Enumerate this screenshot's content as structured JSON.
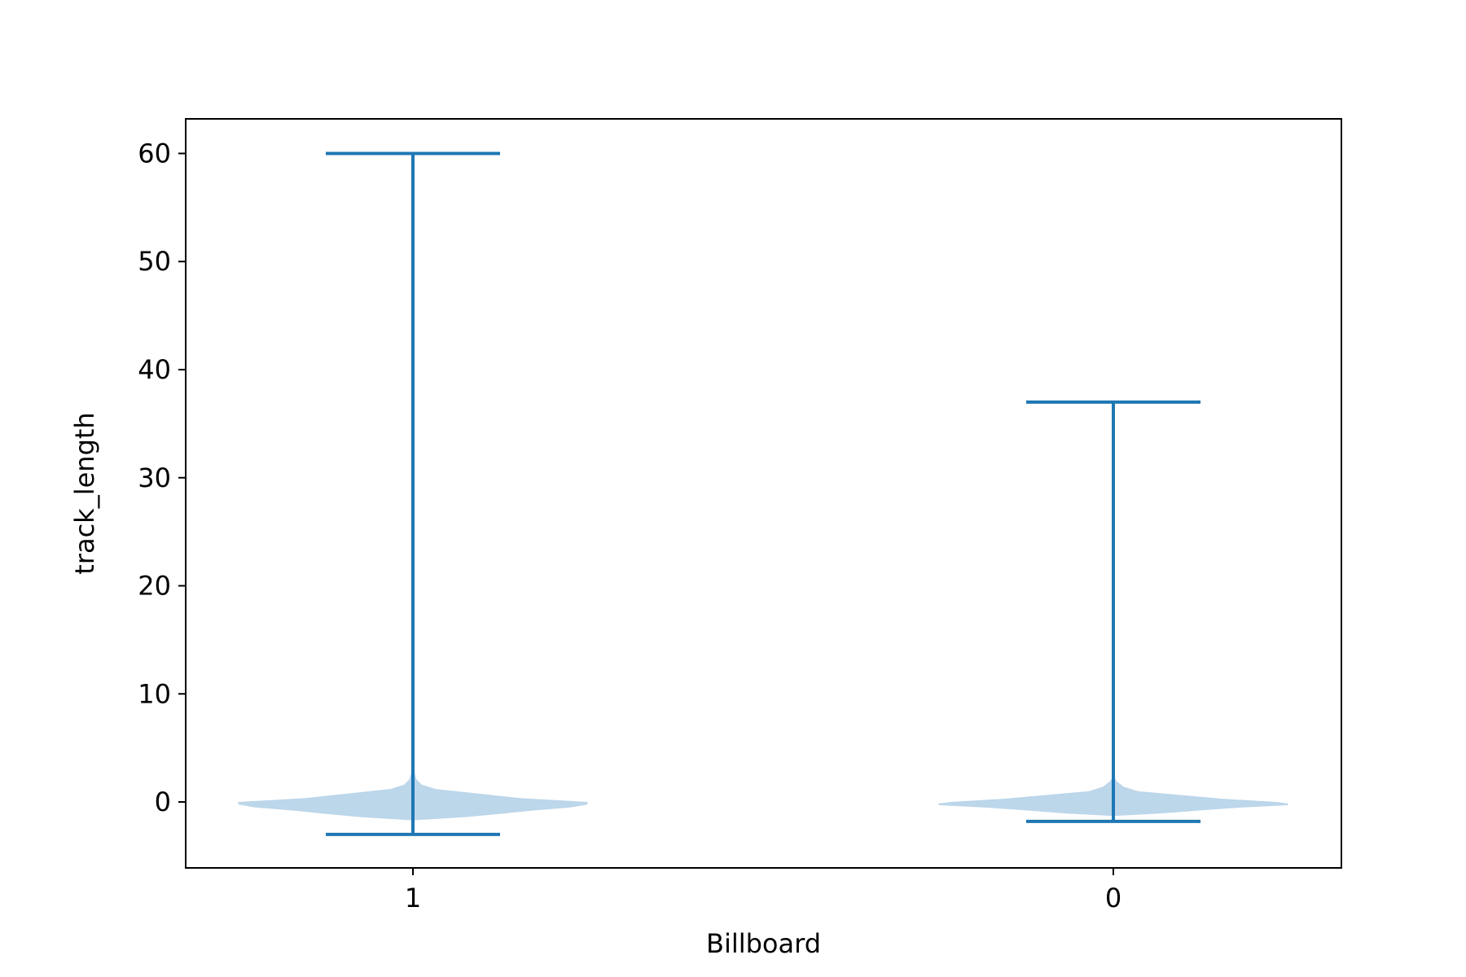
{
  "chart_data": {
    "type": "violin",
    "title": "",
    "xlabel": "Billboard",
    "ylabel": "track_length",
    "categories": [
      "1",
      "0"
    ],
    "ylim": [
      -6.1,
      63.2
    ],
    "yticks": [
      0,
      10,
      20,
      30,
      40,
      50,
      60
    ],
    "grid": false,
    "legend": "none",
    "color": "#1f77b4",
    "fill_color": "#bcd6ea",
    "violins": [
      {
        "category": "1",
        "min": -3.0,
        "max": 60.0,
        "density": [
          [
            -1.7,
            0.0
          ],
          [
            -1.4,
            0.3
          ],
          [
            -1.1,
            0.5
          ],
          [
            -0.8,
            0.68
          ],
          [
            -0.5,
            0.9
          ],
          [
            -0.25,
            0.995
          ],
          [
            0.0,
            1.0
          ],
          [
            0.35,
            0.62
          ],
          [
            0.8,
            0.36
          ],
          [
            1.2,
            0.13
          ],
          [
            1.6,
            0.05
          ],
          [
            2.1,
            0.02
          ],
          [
            2.7,
            0.01
          ],
          [
            3.0,
            0.0
          ]
        ]
      },
      {
        "category": "0",
        "min": -1.8,
        "max": 37.0,
        "density": [
          [
            -1.3,
            0.0
          ],
          [
            -1.05,
            0.28
          ],
          [
            -0.75,
            0.52
          ],
          [
            -0.5,
            0.74
          ],
          [
            -0.3,
            0.995
          ],
          [
            -0.15,
            1.0
          ],
          [
            0.0,
            0.93
          ],
          [
            0.3,
            0.62
          ],
          [
            0.65,
            0.38
          ],
          [
            1.0,
            0.14
          ],
          [
            1.4,
            0.06
          ],
          [
            1.9,
            0.02
          ],
          [
            2.4,
            0.0
          ]
        ]
      }
    ]
  }
}
